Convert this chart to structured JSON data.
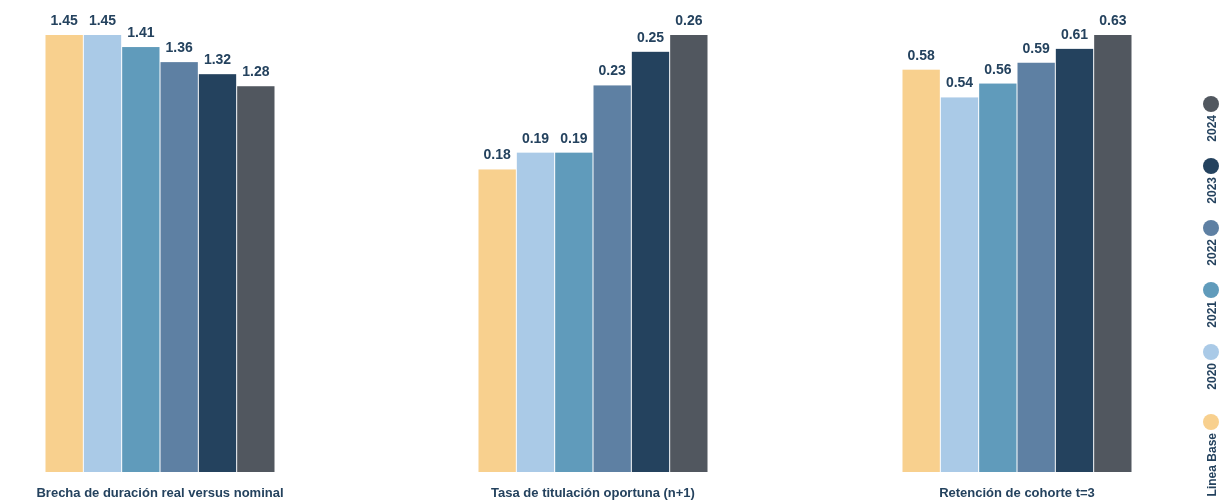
{
  "chart_data": [
    {
      "type": "bar",
      "xlabel": "Brecha de duración real versus nominal",
      "categories": [
        null,
        null,
        null,
        null,
        null,
        null
      ],
      "data_labels": true,
      "legend": false,
      "values": [
        1.45,
        1.45,
        1.41,
        1.36,
        1.32,
        1.28
      ],
      "colors": [
        "#f8d08e",
        "#aacae7",
        "#609bbb",
        "#5e80a3",
        "#24425e",
        "#51575f"
      ]
    },
    {
      "type": "bar",
      "xlabel": "Tasa de titulación oportuna (n+1)",
      "categories": [
        null,
        null,
        null,
        null,
        null,
        null
      ],
      "data_labels": true,
      "legend": false,
      "values": [
        0.18,
        0.19,
        0.19,
        0.23,
        0.25,
        0.26
      ],
      "colors": [
        "#f8d08e",
        "#aacae7",
        "#609bbb",
        "#5e80a3",
        "#24425e",
        "#51575f"
      ]
    },
    {
      "type": "bar",
      "xlabel": "Retención de cohorte t=3",
      "categories": [
        null,
        null,
        null,
        null,
        null,
        null
      ],
      "data_labels": true,
      "legend": "right",
      "stacked": true,
      "series": [
        {
          "name": "Linea Base",
          "color": "#f8d08e",
          "values": [
            0.58,
            null,
            null,
            null,
            null,
            null
          ]
        },
        {
          "name": "2020",
          "color": "#aacae7",
          "values": [
            null,
            0.54,
            null,
            null,
            null,
            null
          ]
        },
        {
          "name": "2021",
          "color": "#609bbb",
          "values": [
            null,
            null,
            0.56,
            null,
            null,
            null
          ]
        },
        {
          "name": "2022",
          "color": "#5e80a3",
          "values": [
            null,
            null,
            null,
            0.59,
            null,
            null
          ]
        },
        {
          "name": "2023",
          "color": "#24425e",
          "values": [
            null,
            null,
            null,
            null,
            0.61,
            null
          ]
        },
        {
          "name": "2024",
          "color": "#51575f",
          "values": [
            null,
            null,
            null,
            null,
            null,
            0.63
          ]
        }
      ]
    }
  ]
}
